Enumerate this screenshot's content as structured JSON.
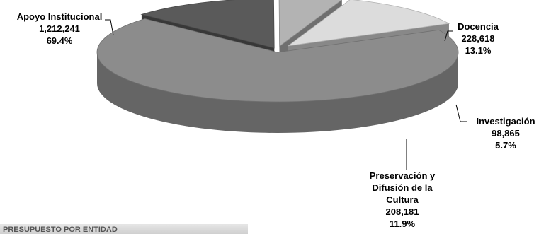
{
  "chart_data": {
    "type": "pie",
    "title": "",
    "values": [
      1212241,
      228618,
      98865,
      208181
    ],
    "colors": [
      "#8c8c8c",
      "#5a5a5a",
      "#b3b3b3",
      "#dcdcdc"
    ],
    "labels": [
      [
        "Apoyo Institucional",
        "1,212,241",
        "69.4%"
      ],
      [
        "Docencia",
        "228,618",
        "13.1%"
      ],
      [
        "Investigación",
        "98,865",
        "5.7%"
      ],
      [
        "Preservación y",
        "Difusión de la",
        "Cultura",
        "208,181",
        "11.9%"
      ]
    ]
  },
  "footer": {
    "text": "PRESUPUESTO POR ENTIDAD"
  }
}
